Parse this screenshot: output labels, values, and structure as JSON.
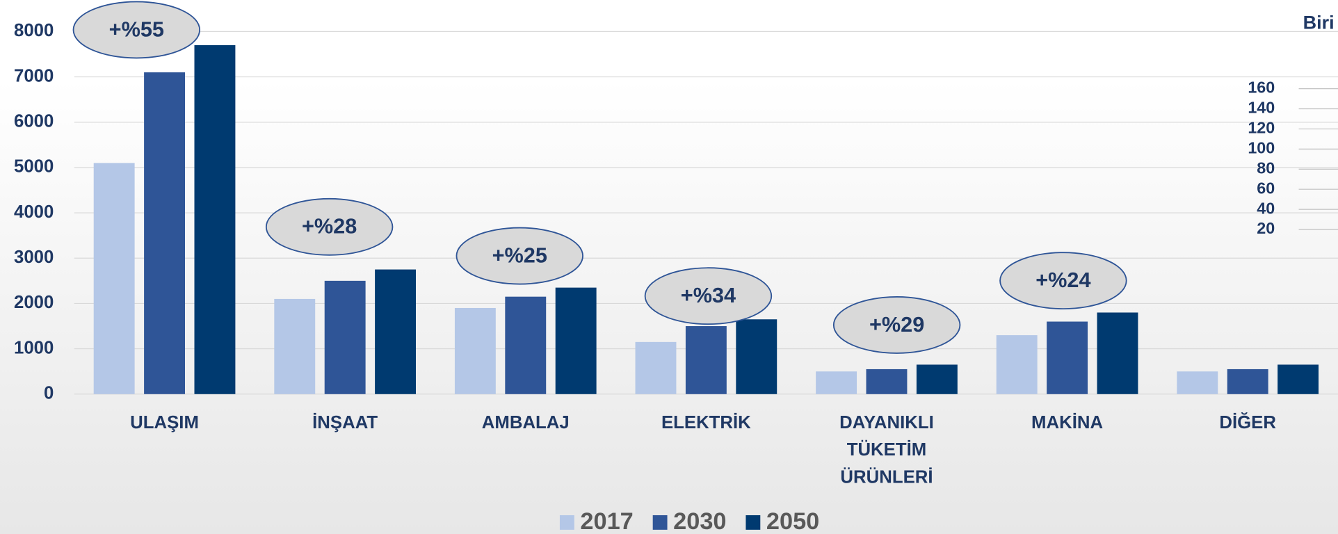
{
  "chart_data": [
    {
      "type": "bar",
      "categories": [
        "ULAŞIM",
        "İNŞAAT",
        "AMBALAJ",
        "ELEKTRİK",
        "DAYANIKLI TÜKETİM ÜRÜNLERİ",
        "MAKİNA",
        "DİĞER"
      ],
      "series": [
        {
          "name": "2017",
          "color": "#b4c7e7",
          "values": [
            5100,
            2100,
            1900,
            1150,
            500,
            1300,
            500
          ]
        },
        {
          "name": "2030",
          "color": "#2f5597",
          "values": [
            7100,
            2500,
            2150,
            1500,
            550,
            1600,
            550
          ]
        },
        {
          "name": "2050",
          "color": "#003a70",
          "values": [
            7700,
            2750,
            2350,
            1650,
            650,
            1800,
            650
          ]
        }
      ],
      "annotations": [
        "+%55",
        "+%28",
        "+%25",
        "+%34",
        "+%29",
        "+%24"
      ],
      "ylim": [
        0,
        8000
      ],
      "yticks": [
        0,
        1000,
        2000,
        3000,
        4000,
        5000,
        6000,
        7000,
        8000
      ],
      "grid": true,
      "legend": "bottom"
    },
    {
      "type": "bar",
      "title": "Biri",
      "ylim": [
        0,
        160
      ],
      "yticks": [
        20,
        40,
        60,
        80,
        100,
        120,
        140,
        160
      ],
      "grid": true
    }
  ]
}
